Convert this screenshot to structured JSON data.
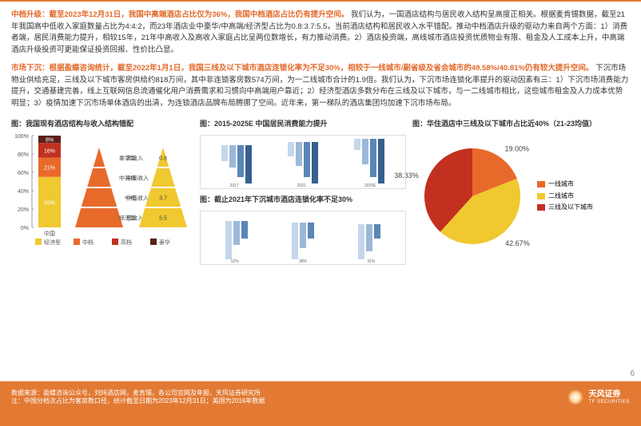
{
  "text_block_1": {
    "lead": "中档升级：截至2023年12月31日，我国中高端酒店占比仅为36%，我国中档酒店占比仍有提升空间。",
    "body": "我们认为，一国酒店结构与居民收入结构呈高度正相关。根据麦肯锡数据，截至21年我国高中低收入家庭数量占比为4:4:2，而23年酒店业中豪华/中高端/经济型占比为0.8:3.7:5.5，当前酒店结构和居民收入水平错配。推动中档酒店升级的驱动力来自两个方面：1）消费者端，居民消费能力提升，相较15年，21年中高收入及高收入家庭占比呈两位数增长，有力推动消费。2）酒店投资端，高线城市酒店投资优质物业有限、租金及人工成本上升，中高端酒店升级投资可更能保证投资回报、性价比凸显。"
  },
  "text_block_2": {
    "lead": "市场下沉：根据盈蝶咨询统计，截至2022年1月1日，我国三线及以下城市酒店连锁化率为不足30%，相较于一线城市/副省级及省会城市的49.58%/40.81%仍有较大提升空间。",
    "body": "下沉市场物业供给充足，三线及以下城市客房供给约818万间，其中非连锁客房数574万间，为一二线城市合计的1.9倍。我们认为，下沉市场连锁化率提升的驱动因素有三：1）下沉市场消费能力提升，交通基建完善，线上互联网信息流通催化用户消费需求和习惯向中高端用户靠近；2）经济型酒店多数分布在三线及以下城市，与一二线城市相比，这些城市租金及人力成本优势明显；3）疫情加速下沉市场单体酒店的出清，为连锁酒店品牌布局腾挪了空间。近年来，第一梯队的酒店集团均加速下沉市场布局。"
  },
  "chart1": {
    "title": "图：我国现有酒店结构与收入结构错配",
    "y_ticks": [
      "0%",
      "20%",
      "40%",
      "60%",
      "80%",
      "100%"
    ],
    "stack": {
      "label": "中国",
      "segments": [
        {
          "value": 55,
          "label": "55%",
          "color": "#f0c830"
        },
        {
          "value": 21,
          "label": "21%",
          "color": "#e86a2b"
        },
        {
          "value": 16,
          "label": "16%",
          "color": "#c23020"
        },
        {
          "value": 8,
          "label": "8%",
          "color": "#5a2018"
        }
      ]
    },
    "pyramids": {
      "left": {
        "labels_right": [
          "高收入",
          "中高收入",
          "中低收入",
          "低收入"
        ],
        "color": "#e86a2b"
      },
      "right": {
        "labels_left": [
          "豪华型",
          "中高档",
          "中档",
          "经济型"
        ],
        "values": [
          "0.8",
          "",
          "3.7",
          "5.5"
        ],
        "color": "#f0c830"
      }
    },
    "legend": [
      "经济型",
      "中档",
      "高档",
      "豪华"
    ],
    "legend_colors": [
      "#f0c830",
      "#e86a2b",
      "#c23020",
      "#5a2018"
    ]
  },
  "chart_mid": {
    "title_top": "图：2015-2025E 中国居民消费能力提升",
    "title_bottom": "图：截止2021年下沉城市酒店连锁化率不足30%",
    "years": [
      "2017",
      "2021",
      "2025E"
    ],
    "bottom_pcts": [
      "12%",
      "38%",
      "31%"
    ],
    "bar_colors": [
      "#c6d6ea",
      "#9db8d8",
      "#5a86b8",
      "#36608e"
    ]
  },
  "pie": {
    "title": "图：华住酒店中三线及以下城市占比近40%（21-23均值）",
    "slices": [
      {
        "label": "一线城市",
        "value": 19.0,
        "color": "#e86a2b"
      },
      {
        "label": "二线城市",
        "value": 42.67,
        "color": "#f0c830"
      },
      {
        "label": "三线及以下城市",
        "value": 38.33,
        "color": "#c23020"
      }
    ],
    "slice_labels": [
      "19.00%",
      "42.67%",
      "38.33%"
    ]
  },
  "footer": {
    "source": "数据来源：盈蝶咨询公众号，刘炜酒店网，麦肯锡，各公司官网及年报，天风证券研究所",
    "note": "注：中国分档次占比为客房数口径，统计截至日期为2023年12月31日；美国为2016年数据",
    "brand": "天风证券",
    "brand_en": "TF SECURITIES"
  },
  "page_number": "6"
}
